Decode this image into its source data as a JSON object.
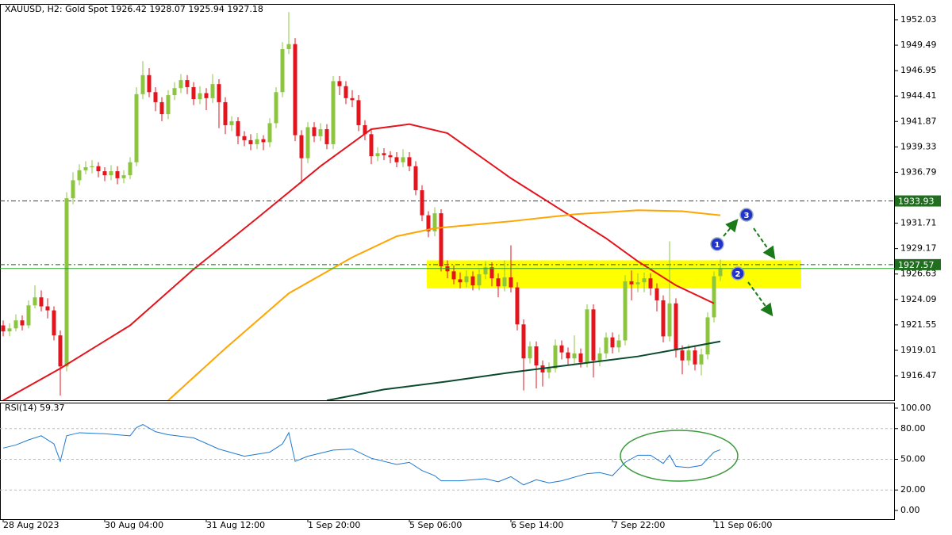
{
  "chart_data": [
    {
      "type": "candlestick",
      "title": "XAUUSD, H2:  Gold Spot  1926.42 1928.07 1925.94 1927.18",
      "up_color": "#8cc63f",
      "down_color": "#e3141c",
      "xlim": [
        -0.5,
        140.5
      ],
      "ylim": [
        1914.02,
        1953.61
      ],
      "yticks": [
        1952.03,
        1949.49,
        1946.95,
        1944.41,
        1941.87,
        1939.33,
        1936.79,
        1931.71,
        1929.17,
        1926.63,
        1924.09,
        1921.55,
        1919.01,
        1916.47
      ],
      "open": [
        1921.5,
        1920.9,
        1921.2,
        1922.0,
        1921.5,
        1923.5,
        1924.3,
        1923.4,
        1923.0,
        1920.5,
        1917.4,
        1934.2,
        1936.0,
        1937.0,
        1937.3,
        1937.4,
        1936.9,
        1936.5,
        1936.9,
        1936.2,
        1936.5,
        1937.8,
        1944.6,
        1946.5,
        1944.8,
        1943.8,
        1942.6,
        1944.5,
        1945.2,
        1946.0,
        1945.3,
        1944.1,
        1944.7,
        1944.2,
        1945.6,
        1943.8,
        1941.5,
        1941.9,
        1940.4,
        1940.0,
        1939.6,
        1940.1,
        1939.8,
        1941.7,
        1944.8,
        1949.1,
        1949.6,
        1940.5,
        1938.2,
        1941.3,
        1940.4,
        1941.1,
        1939.6,
        1945.9,
        1945.4,
        1944.2,
        1944.0,
        1941.5,
        1940.6,
        1938.4,
        1938.7,
        1938.5,
        1938.3,
        1937.8,
        1938.3,
        1937.4,
        1935.0,
        1932.5,
        1930.9,
        1932.7,
        1927.4,
        1926.9,
        1926.1,
        1925.8,
        1926.4,
        1925.5,
        1926.6,
        1927.3,
        1926.2,
        1925.4,
        1926.3,
        1925.3,
        1921.6,
        1918.2,
        1919.4,
        1917.5,
        1916.8,
        1917.2,
        1919.5,
        1918.8,
        1918.2,
        1918.7,
        1917.8,
        1923.1,
        1918.0,
        1918.7,
        1920.3,
        1919.3,
        1920.0,
        1925.9,
        1925.6,
        1925.8,
        1926.2,
        1925.2,
        1924.0,
        1920.4,
        1923.7,
        1919.0,
        1918.0,
        1919.0,
        1917.6,
        1918.6,
        1922.3,
        1926.42
      ],
      "high": [
        1922.0,
        1921.7,
        1922.6,
        1922.5,
        1924.0,
        1925.5,
        1925.0,
        1924.2,
        1923.4,
        1921.0,
        1934.8,
        1936.8,
        1937.6,
        1937.9,
        1938.0,
        1937.8,
        1937.3,
        1937.5,
        1937.4,
        1937.0,
        1938.3,
        1945.3,
        1947.9,
        1947.2,
        1945.3,
        1944.3,
        1945.0,
        1945.8,
        1946.6,
        1946.5,
        1945.8,
        1945.4,
        1945.2,
        1946.6,
        1946.1,
        1944.3,
        1942.4,
        1942.3,
        1940.9,
        1940.6,
        1940.7,
        1940.5,
        1942.2,
        1945.3,
        1949.8,
        1952.8,
        1950.2,
        1941.0,
        1941.8,
        1941.8,
        1941.7,
        1941.6,
        1946.4,
        1946.4,
        1945.9,
        1945.0,
        1944.5,
        1942.0,
        1941.1,
        1939.3,
        1939.2,
        1938.9,
        1938.8,
        1939.1,
        1938.8,
        1937.9,
        1935.5,
        1932.9,
        1933.3,
        1933.1,
        1928.0,
        1927.5,
        1926.8,
        1927.0,
        1926.9,
        1927.1,
        1927.9,
        1927.8,
        1926.7,
        1928.0,
        1929.5,
        1925.8,
        1922.1,
        1919.9,
        1919.9,
        1918.0,
        1917.8,
        1920.1,
        1920.0,
        1919.3,
        1920.5,
        1919.2,
        1923.6,
        1923.6,
        1919.3,
        1920.8,
        1920.8,
        1920.6,
        1926.5,
        1927.0,
        1926.7,
        1926.8,
        1926.7,
        1925.7,
        1924.5,
        1929.9,
        1924.2,
        1919.5,
        1919.6,
        1919.5,
        1919.2,
        1922.8,
        1926.9,
        1928.07
      ],
      "low": [
        1920.4,
        1920.4,
        1920.9,
        1921.0,
        1921.2,
        1923.2,
        1922.9,
        1922.2,
        1920.0,
        1914.5,
        1916.9,
        1933.6,
        1935.5,
        1936.6,
        1936.7,
        1936.3,
        1935.9,
        1936.0,
        1935.6,
        1935.7,
        1936.1,
        1937.4,
        1944.1,
        1944.3,
        1942.9,
        1941.9,
        1942.1,
        1944.0,
        1944.7,
        1944.6,
        1943.5,
        1943.6,
        1943.0,
        1943.7,
        1941.2,
        1940.6,
        1940.9,
        1939.6,
        1939.4,
        1939.0,
        1939.1,
        1939.0,
        1939.3,
        1941.2,
        1944.3,
        1948.6,
        1939.9,
        1935.7,
        1937.7,
        1939.8,
        1939.9,
        1939.1,
        1939.1,
        1944.5,
        1943.6,
        1943.3,
        1940.9,
        1940.0,
        1937.6,
        1937.9,
        1938.0,
        1937.7,
        1937.3,
        1937.3,
        1936.9,
        1934.5,
        1931.9,
        1930.3,
        1930.4,
        1926.9,
        1926.2,
        1925.6,
        1925.2,
        1925.3,
        1925.0,
        1925.0,
        1926.1,
        1925.4,
        1924.3,
        1924.9,
        1924.8,
        1921.0,
        1915.0,
        1917.7,
        1915.2,
        1915.4,
        1916.2,
        1916.8,
        1918.1,
        1917.6,
        1917.7,
        1917.3,
        1917.3,
        1916.3,
        1917.4,
        1918.2,
        1918.7,
        1918.8,
        1919.5,
        1924.0,
        1924.8,
        1924.8,
        1924.5,
        1922.9,
        1919.8,
        1919.9,
        1918.3,
        1916.6,
        1917.5,
        1917.0,
        1916.5,
        1918.1,
        1921.8,
        1925.94
      ],
      "close": [
        1920.9,
        1921.2,
        1922.0,
        1921.5,
        1923.5,
        1924.3,
        1923.4,
        1923.0,
        1920.5,
        1917.4,
        1934.2,
        1936.0,
        1937.0,
        1937.3,
        1937.4,
        1936.9,
        1936.5,
        1936.9,
        1936.2,
        1936.5,
        1937.8,
        1944.6,
        1946.5,
        1944.8,
        1943.8,
        1942.6,
        1944.5,
        1945.2,
        1946.0,
        1945.3,
        1944.1,
        1944.7,
        1944.2,
        1945.6,
        1943.8,
        1941.5,
        1941.9,
        1940.4,
        1940.0,
        1939.6,
        1940.1,
        1939.8,
        1941.7,
        1944.8,
        1949.1,
        1949.6,
        1940.5,
        1938.2,
        1941.3,
        1940.4,
        1941.1,
        1939.6,
        1945.9,
        1945.4,
        1944.2,
        1944.0,
        1941.5,
        1940.6,
        1938.4,
        1938.7,
        1938.5,
        1938.3,
        1937.8,
        1938.3,
        1937.4,
        1935.0,
        1932.5,
        1930.9,
        1932.7,
        1927.4,
        1926.9,
        1926.1,
        1925.8,
        1926.4,
        1925.5,
        1926.6,
        1927.3,
        1926.2,
        1925.4,
        1926.3,
        1925.3,
        1921.6,
        1918.2,
        1919.4,
        1917.5,
        1916.8,
        1917.2,
        1919.5,
        1918.8,
        1918.2,
        1918.7,
        1917.8,
        1923.1,
        1918.0,
        1918.7,
        1920.3,
        1919.3,
        1920.0,
        1925.9,
        1925.6,
        1925.8,
        1926.2,
        1925.2,
        1924.0,
        1920.4,
        1923.7,
        1919.0,
        1918.0,
        1919.0,
        1917.6,
        1918.6,
        1922.3,
        1926.4,
        1927.18
      ],
      "series": [
        {
          "color": "#e3141c",
          "x": [
            0,
            9,
            20,
            30,
            40,
            50,
            58,
            64,
            70,
            80,
            88,
            95,
            100,
            106,
            112
          ],
          "values": [
            1914.0,
            1917.2,
            1921.5,
            1927.1,
            1932.2,
            1937.4,
            1941.1,
            1941.6,
            1940.7,
            1936.2,
            1933.0,
            1930.2,
            1927.9,
            1925.5,
            1923.7
          ]
        },
        {
          "color": "#ffa500",
          "x": [
            26,
            35,
            45,
            55,
            62,
            68,
            80,
            90,
            100,
            107,
            113
          ],
          "values": [
            1914.0,
            1919.2,
            1924.7,
            1928.3,
            1930.4,
            1931.2,
            1931.9,
            1932.6,
            1933.0,
            1932.9,
            1932.5
          ]
        },
        {
          "color": "#0b4a2e",
          "x": [
            51,
            60,
            70,
            80,
            90,
            100,
            107,
            113
          ],
          "values": [
            1914.0,
            1915.1,
            1915.9,
            1916.8,
            1917.6,
            1918.4,
            1919.2,
            1919.9
          ]
        }
      ],
      "price_lines": [
        1933.93,
        1927.57
      ],
      "zone": {
        "x": [
          66.75,
          125.75
        ],
        "y": [
          1925.2,
          1928.0
        ],
        "color": "#ffff00"
      },
      "annotations": [
        "1",
        "2",
        "3"
      ]
    },
    {
      "type": "line",
      "title": "RSI(14) 59.37",
      "color": "#1e78d2",
      "xlim": [
        -0.5,
        140.5
      ],
      "ylim": [
        -8.5,
        105.4
      ],
      "yticks": [
        {
          "value": 100,
          "label": "100.00"
        },
        {
          "value": 80,
          "label": "80.00"
        },
        {
          "value": 50,
          "label": "50.00"
        },
        {
          "value": 20,
          "label": "20.00"
        },
        {
          "value": 0,
          "label": "0.00"
        }
      ],
      "levels": [
        80,
        50,
        20
      ],
      "x": [
        0,
        2,
        4,
        6,
        8,
        9,
        10,
        12,
        16,
        20,
        21,
        22,
        24,
        26,
        30,
        34,
        38,
        42,
        44,
        45,
        46,
        48,
        52,
        55,
        58,
        62,
        64,
        66,
        68,
        69,
        72,
        76,
        78,
        80,
        82,
        84,
        86,
        88,
        92,
        94,
        96,
        98,
        100,
        102,
        104,
        105,
        106,
        108,
        110,
        112,
        113
      ],
      "values": [
        61,
        64,
        69,
        73,
        65,
        48,
        73,
        76,
        75,
        73,
        81,
        84,
        77,
        74,
        71,
        60,
        53,
        57,
        65,
        76,
        48,
        53,
        59,
        60,
        51,
        45,
        47,
        39,
        34,
        29,
        29,
        31,
        28,
        33,
        25,
        30,
        27,
        29,
        36,
        37,
        34,
        47,
        54,
        54,
        46,
        54,
        43,
        42,
        44,
        57,
        59.37
      ],
      "xticks": [
        {
          "value": 0,
          "label": "28 Aug 2023"
        },
        {
          "value": 16,
          "label": "30 Aug 04:00"
        },
        {
          "value": 32,
          "label": "31 Aug 12:00"
        },
        {
          "value": 48,
          "label": "1 Sep 20:00"
        },
        {
          "value": 64,
          "label": "5 Sep 06:00"
        },
        {
          "value": 80,
          "label": "6 Sep 14:00"
        },
        {
          "value": 96,
          "label": "7 Sep 22:00"
        },
        {
          "value": 112,
          "label": "11 Sep 06:00"
        }
      ]
    }
  ]
}
